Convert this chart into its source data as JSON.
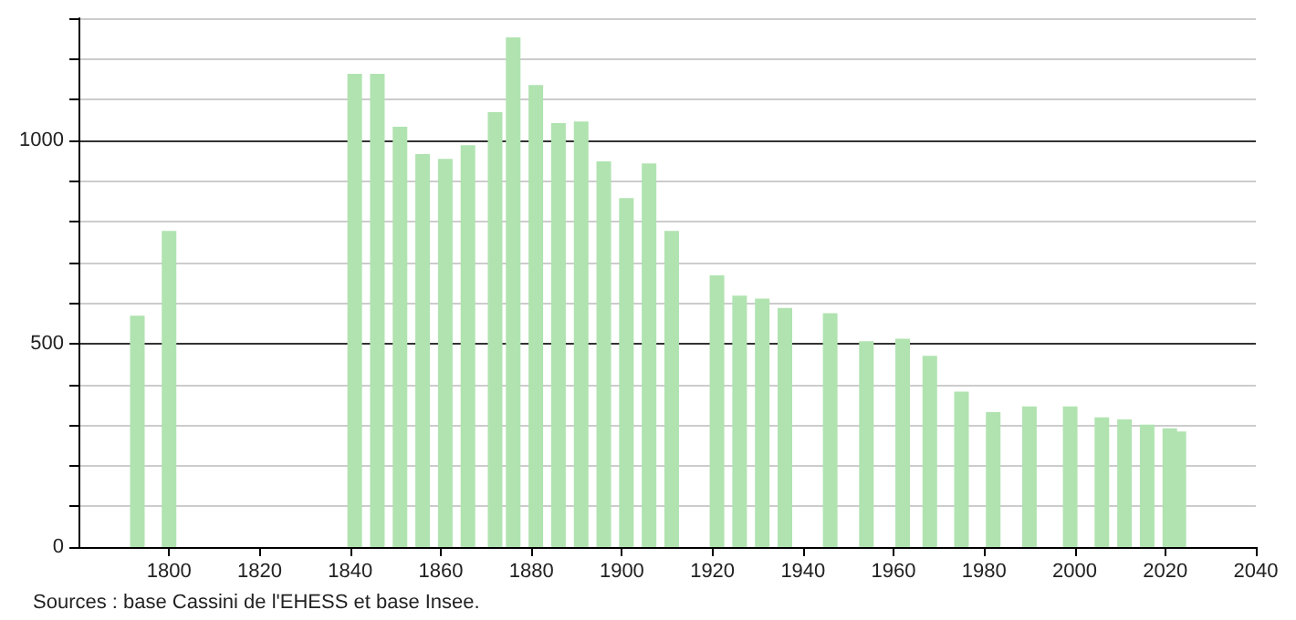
{
  "chart_data": {
    "type": "bar",
    "x": [
      1793,
      1800,
      1841,
      1846,
      1851,
      1856,
      1861,
      1866,
      1872,
      1876,
      1881,
      1886,
      1891,
      1896,
      1901,
      1906,
      1911,
      1921,
      1926,
      1931,
      1936,
      1946,
      1954,
      1962,
      1968,
      1975,
      1982,
      1990,
      1999,
      2006,
      2011,
      2016,
      2021,
      2023
    ],
    "values": [
      569,
      777,
      1163,
      1163,
      1033,
      966,
      954,
      988,
      1069,
      1253,
      1136,
      1042,
      1046,
      948,
      858,
      943,
      777,
      668,
      618,
      611,
      588,
      575,
      506,
      512,
      470,
      382,
      332,
      346,
      346,
      319,
      314,
      301,
      292,
      284
    ],
    "color": "#b0e3b0",
    "xlim": [
      1780,
      2040
    ],
    "xticks": [
      1800,
      1820,
      1840,
      1860,
      1880,
      1900,
      1920,
      1940,
      1960,
      1980,
      2000,
      2020,
      2040
    ],
    "ylim": [
      0,
      1300
    ],
    "yticks": [
      0,
      {
        "value": 100,
        "label": null
      },
      {
        "value": 200,
        "label": null
      },
      {
        "value": 300,
        "label": null
      },
      {
        "value": 400,
        "label": null
      },
      500,
      {
        "value": 600,
        "label": null
      },
      {
        "value": 700,
        "label": null
      },
      {
        "value": 800,
        "label": null
      },
      {
        "value": 900,
        "label": null
      },
      1000,
      {
        "value": 1100,
        "label": null
      },
      {
        "value": 1200,
        "label": null
      },
      {
        "value": 1300,
        "label": null
      }
    ],
    "grid": "y",
    "annotations": [
      "Sources : base Cassini de l'EHESS et base Insee."
    ]
  }
}
